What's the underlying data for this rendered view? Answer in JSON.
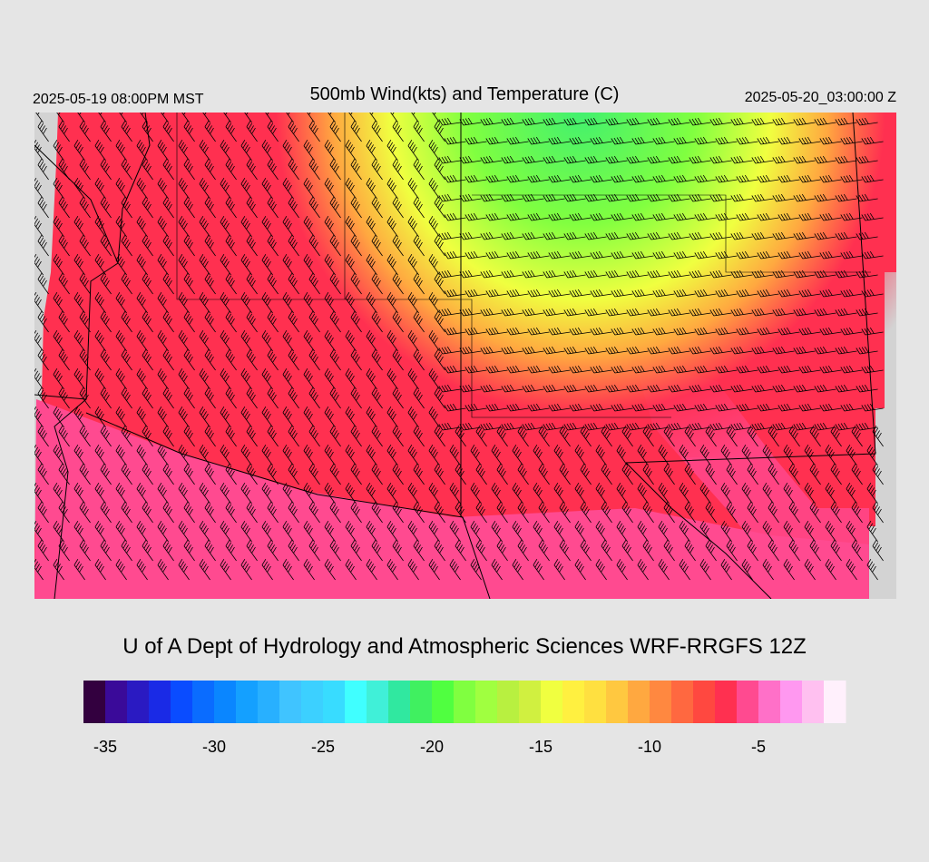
{
  "header": {
    "valid_local": "2025-05-19 08:00PM MST",
    "title": "500mb Wind(kts) and Temperature (C)",
    "valid_utc": "2025-05-20_03:00:00 Z"
  },
  "credit": "U of A Dept of Hydrology and Atmospheric Sciences WRF-RRGFS 12Z",
  "colorbar": {
    "range": [
      -36,
      -1
    ],
    "ticks": [
      -35,
      -30,
      -25,
      -20,
      -15,
      -10,
      -5
    ],
    "colors": [
      "#33003f",
      "#3a0a99",
      "#2a1ac2",
      "#1a2ae6",
      "#0a4cff",
      "#0a6cff",
      "#0a86ff",
      "#14a0ff",
      "#28b0ff",
      "#40c4ff",
      "#3cd0ff",
      "#38dcff",
      "#40ffff",
      "#40f0d8",
      "#30e8a0",
      "#40f060",
      "#50ff40",
      "#80ff40",
      "#a0ff40",
      "#b8f040",
      "#d0f040",
      "#f0ff40",
      "#fff040",
      "#ffe040",
      "#ffc840",
      "#ffa840",
      "#ff8840",
      "#ff6840",
      "#ff4840",
      "#ff3050",
      "#ff4a90",
      "#ff70c8",
      "#ff98f0",
      "#ffc0f0",
      "#fff0fc"
    ]
  }
}
